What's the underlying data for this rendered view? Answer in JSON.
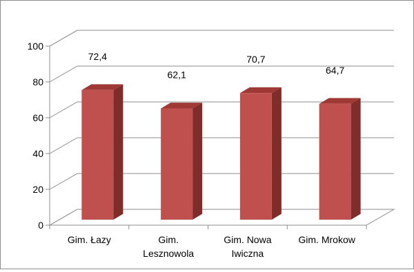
{
  "chart_data": {
    "type": "bar",
    "style": "3d-column",
    "title": "",
    "xlabel": "",
    "ylabel": "",
    "categories": [
      [
        "Gim. Łazy"
      ],
      [
        "Gim.",
        "Lesznowola"
      ],
      [
        "Gim. Nowa",
        "Iwiczna"
      ],
      [
        "Gim. Mrokow"
      ]
    ],
    "values": [
      72.4,
      62.1,
      70.7,
      64.7
    ],
    "value_labels": [
      "72,4",
      "62,1",
      "70,7",
      "64,7"
    ],
    "yticks": [
      "0",
      "20",
      "40",
      "60",
      "80",
      "100"
    ],
    "ylim": [
      0,
      100
    ],
    "grid": true,
    "legend": "none",
    "colors": {
      "bar_front": "#c0504d",
      "bar_side": "#7f2d2b",
      "bar_top": "#9e3936",
      "grid": "#8c8c8c"
    }
  }
}
